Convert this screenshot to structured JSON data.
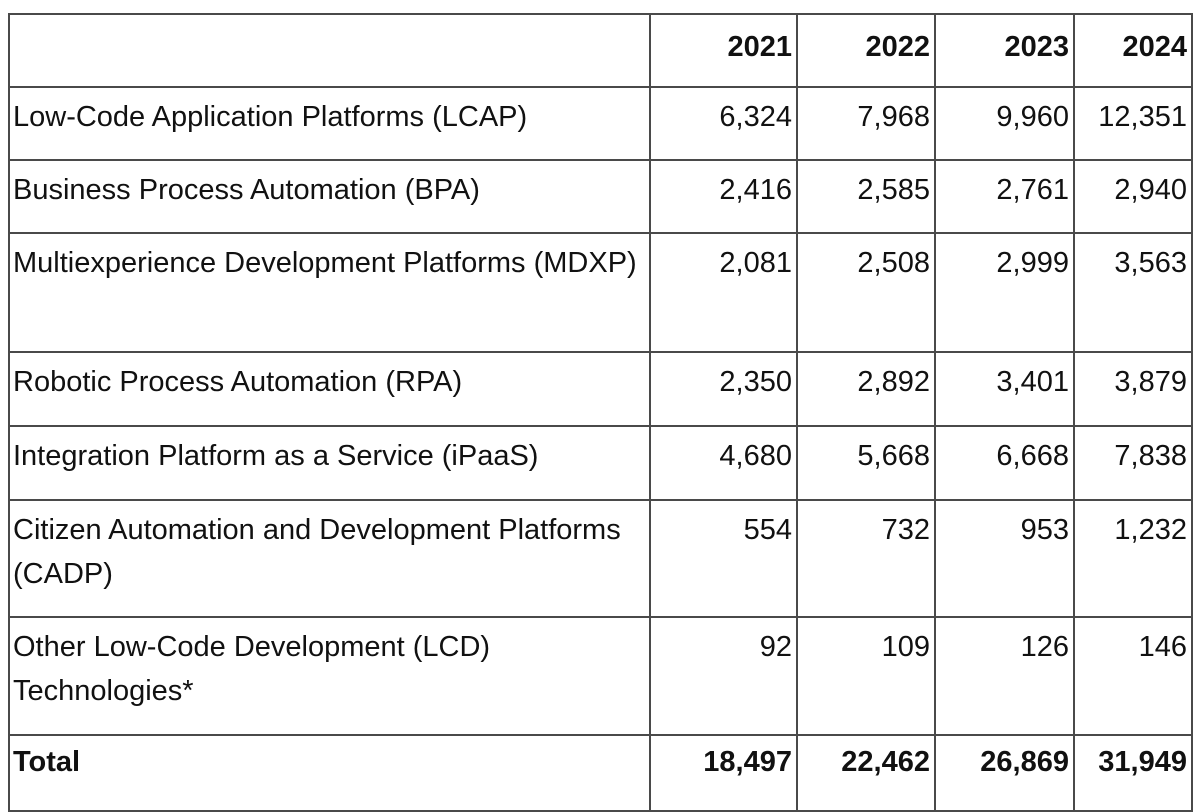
{
  "chart_data": {
    "type": "table",
    "columns": [
      "2021",
      "2022",
      "2023",
      "2024"
    ],
    "rows": [
      {
        "label": "Low-Code Application Platforms (LCAP)",
        "values": [
          "6,324",
          "7,968",
          "9,960",
          "12,351"
        ]
      },
      {
        "label": "Business Process Automation (BPA)",
        "values": [
          "2,416",
          "2,585",
          "2,761",
          "2,940"
        ]
      },
      {
        "label": "Multiexperience Development Platforms (MDXP)",
        "values": [
          "2,081",
          "2,508",
          "2,999",
          "3,563"
        ]
      },
      {
        "label": "Robotic Process Automation (RPA)",
        "values": [
          "2,350",
          "2,892",
          "3,401",
          "3,879"
        ]
      },
      {
        "label": "Integration Platform as a Service (iPaaS)",
        "values": [
          "4,680",
          "5,668",
          "6,668",
          "7,838"
        ]
      },
      {
        "label": "Citizen Automation and Development Platforms (CADP)",
        "values": [
          "554",
          "732",
          "953",
          "1,232"
        ]
      },
      {
        "label": "Other Low-Code Development (LCD) Technologies*",
        "values": [
          "92",
          "109",
          "126",
          "146"
        ]
      }
    ],
    "total": {
      "label": "Total",
      "values": [
        "18,497",
        "22,462",
        "26,869",
        "31,949"
      ]
    }
  }
}
